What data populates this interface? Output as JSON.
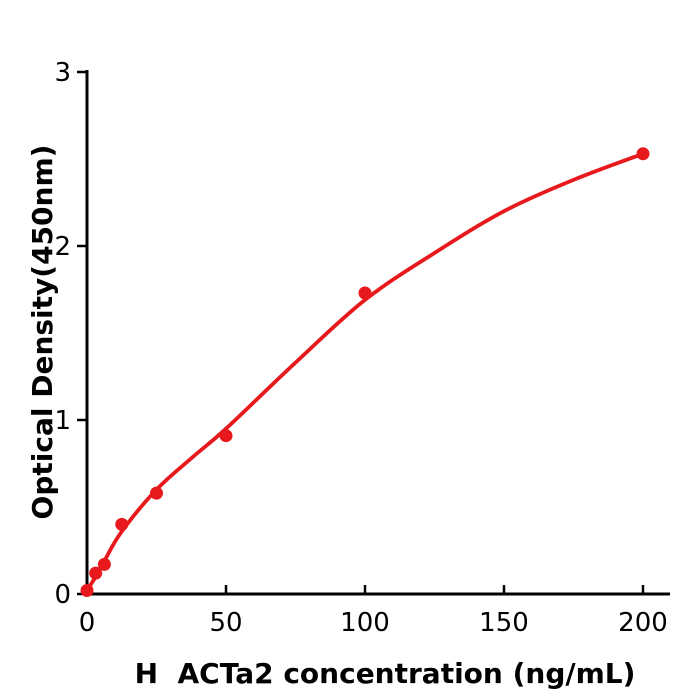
{
  "figure": {
    "background": "#ffffff",
    "axis_color": "#000000",
    "accent_red": "#e8191c"
  },
  "chart_data": {
    "type": "scatter",
    "title": "",
    "xlabel": "H  ACTa2 concentration (ng/mL)",
    "ylabel": "Optical Density(450nm)",
    "xlim": [
      0,
      210
    ],
    "ylim": [
      0,
      3
    ],
    "x_ticks": [
      0,
      50,
      100,
      150,
      200
    ],
    "y_ticks": [
      0,
      1,
      2,
      3
    ],
    "grid": false,
    "legend": "none",
    "marker_color": "#e8191c",
    "line_color": "#e8191c",
    "points": [
      {
        "x": 0,
        "y": 0.02
      },
      {
        "x": 3.125,
        "y": 0.12
      },
      {
        "x": 6.25,
        "y": 0.17
      },
      {
        "x": 12.5,
        "y": 0.4
      },
      {
        "x": 25,
        "y": 0.58
      },
      {
        "x": 50,
        "y": 0.91
      },
      {
        "x": 100,
        "y": 1.73
      },
      {
        "x": 200,
        "y": 2.53
      }
    ],
    "fit_curve": [
      [
        0,
        0.02
      ],
      [
        3.125,
        0.1
      ],
      [
        6.25,
        0.19
      ],
      [
        12.5,
        0.36
      ],
      [
        25,
        0.6
      ],
      [
        37.5,
        0.78
      ],
      [
        50,
        0.95
      ],
      [
        75,
        1.33
      ],
      [
        100,
        1.69
      ],
      [
        125,
        1.96
      ],
      [
        150,
        2.2
      ],
      [
        175,
        2.38
      ],
      [
        200,
        2.53
      ]
    ]
  }
}
